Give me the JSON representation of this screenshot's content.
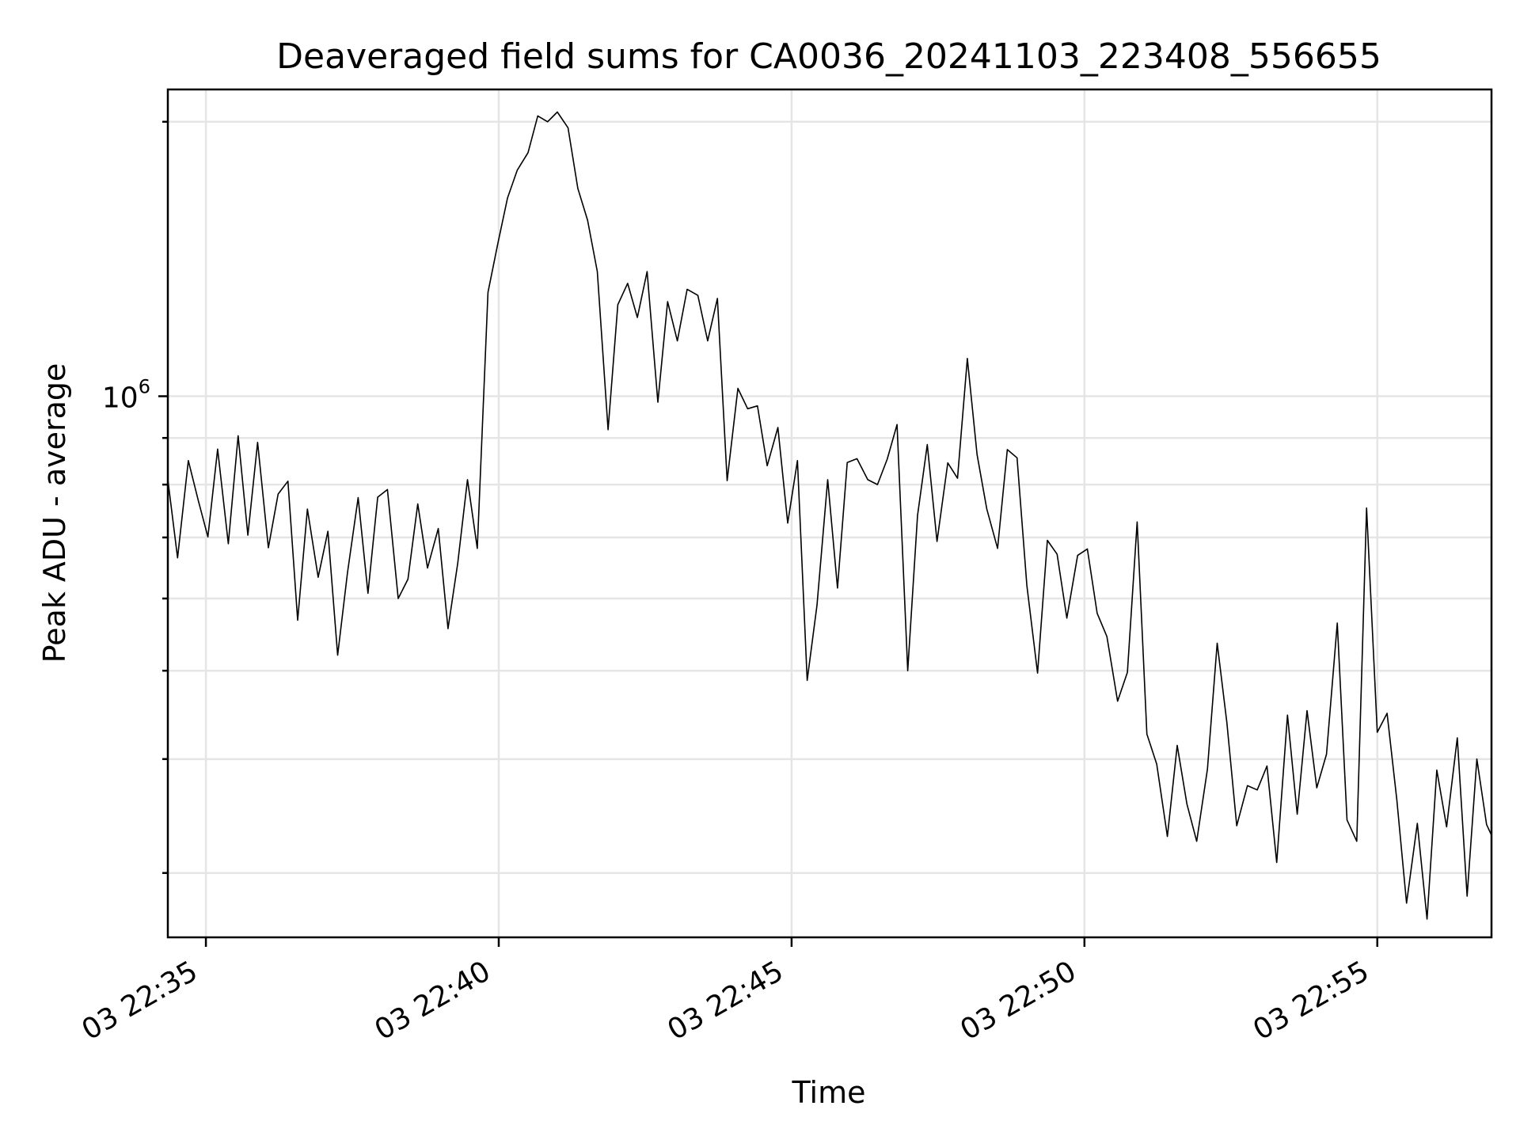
{
  "chart_data": {
    "type": "line",
    "title": "Deaveraged field sums for CA0036_20241103_223408_556655",
    "xlabel": "Time",
    "ylabel": "Peak ADU - average",
    "y_scale": "log",
    "grid": true,
    "legend": "none",
    "line_color": "#000000",
    "grid_color": "#e5e5e5",
    "x_tick_labels": [
      "03 22:35",
      "03 22:40",
      "03 22:45",
      "03 22:50",
      "03 22:55"
    ],
    "x_ticks": [
      "2024-11-03 22:35",
      "2024-11-03 22:40",
      "2024-11-03 22:45",
      "2024-11-03 22:50",
      "2024-11-03 22:55"
    ],
    "xlim": [
      "2024-11-03 22:34:21",
      "2024-11-03 22:56:57"
    ],
    "y_major_ticks": [
      {
        "value": 1000000,
        "base": "10",
        "exp": "6"
      }
    ],
    "y_minor_ticks": [
      300000,
      400000,
      500000,
      600000,
      700000,
      800000,
      900000,
      2000000
    ],
    "ylim": [
      255000,
      2170000
    ],
    "x": [
      "2024-11-03 22:34:21",
      "2024-11-03 22:34:31",
      "2024-11-03 22:34:42",
      "2024-11-03 22:34:52",
      "2024-11-03 22:35:02",
      "2024-11-03 22:35:12",
      "2024-11-03 22:35:23",
      "2024-11-03 22:35:33",
      "2024-11-03 22:35:43",
      "2024-11-03 22:35:53",
      "2024-11-03 22:36:04",
      "2024-11-03 22:36:14",
      "2024-11-03 22:36:24",
      "2024-11-03 22:36:34",
      "2024-11-03 22:36:44",
      "2024-11-03 22:36:55",
      "2024-11-03 22:37:05",
      "2024-11-03 22:37:15",
      "2024-11-03 22:37:25",
      "2024-11-03 22:37:36",
      "2024-11-03 22:37:46",
      "2024-11-03 22:37:56",
      "2024-11-03 22:38:06",
      "2024-11-03 22:38:17",
      "2024-11-03 22:38:27",
      "2024-11-03 22:38:37",
      "2024-11-03 22:38:47",
      "2024-11-03 22:38:58",
      "2024-11-03 22:39:08",
      "2024-11-03 22:39:18",
      "2024-11-03 22:39:28",
      "2024-11-03 22:39:38",
      "2024-11-03 22:39:49",
      "2024-11-03 22:39:59",
      "2024-11-03 22:40:09",
      "2024-11-03 22:40:19",
      "2024-11-03 22:40:30",
      "2024-11-03 22:40:40",
      "2024-11-03 22:40:50",
      "2024-11-03 22:41:00",
      "2024-11-03 22:41:11",
      "2024-11-03 22:41:21",
      "2024-11-03 22:41:31",
      "2024-11-03 22:41:41",
      "2024-11-03 22:41:52",
      "2024-11-03 22:42:02",
      "2024-11-03 22:42:12",
      "2024-11-03 22:42:22",
      "2024-11-03 22:42:32",
      "2024-11-03 22:42:43",
      "2024-11-03 22:42:53",
      "2024-11-03 22:43:03",
      "2024-11-03 22:43:13",
      "2024-11-03 22:43:24",
      "2024-11-03 22:43:34",
      "2024-11-03 22:43:44",
      "2024-11-03 22:43:54",
      "2024-11-03 22:44:05",
      "2024-11-03 22:44:15",
      "2024-11-03 22:44:25",
      "2024-11-03 22:44:35",
      "2024-11-03 22:44:46",
      "2024-11-03 22:44:56",
      "2024-11-03 22:45:06",
      "2024-11-03 22:45:16",
      "2024-11-03 22:45:26",
      "2024-11-03 22:45:37",
      "2024-11-03 22:45:47",
      "2024-11-03 22:45:57",
      "2024-11-03 22:46:07",
      "2024-11-03 22:46:18",
      "2024-11-03 22:46:28",
      "2024-11-03 22:46:38",
      "2024-11-03 22:46:48",
      "2024-11-03 22:46:59",
      "2024-11-03 22:47:09",
      "2024-11-03 22:47:19",
      "2024-11-03 22:47:29",
      "2024-11-03 22:47:40",
      "2024-11-03 22:47:50",
      "2024-11-03 22:48:00",
      "2024-11-03 22:48:10",
      "2024-11-03 22:48:20",
      "2024-11-03 22:48:31",
      "2024-11-03 22:48:41",
      "2024-11-03 22:48:51",
      "2024-11-03 22:49:01",
      "2024-11-03 22:49:12",
      "2024-11-03 22:49:22",
      "2024-11-03 22:49:32",
      "2024-11-03 22:49:42",
      "2024-11-03 22:49:53",
      "2024-11-03 22:50:03",
      "2024-11-03 22:50:13",
      "2024-11-03 22:50:23",
      "2024-11-03 22:50:34",
      "2024-11-03 22:50:44",
      "2024-11-03 22:50:54",
      "2024-11-03 22:51:04",
      "2024-11-03 22:51:14",
      "2024-11-03 22:51:25",
      "2024-11-03 22:51:35",
      "2024-11-03 22:51:45",
      "2024-11-03 22:51:55",
      "2024-11-03 22:52:06",
      "2024-11-03 22:52:16",
      "2024-11-03 22:52:26",
      "2024-11-03 22:52:36",
      "2024-11-03 22:52:47",
      "2024-11-03 22:52:57",
      "2024-11-03 22:53:07",
      "2024-11-03 22:53:17",
      "2024-11-03 22:53:28",
      "2024-11-03 22:53:38",
      "2024-11-03 22:53:48",
      "2024-11-03 22:53:58",
      "2024-11-03 22:54:08",
      "2024-11-03 22:54:19",
      "2024-11-03 22:54:29",
      "2024-11-03 22:54:39",
      "2024-11-03 22:54:49",
      "2024-11-03 22:55:00",
      "2024-11-03 22:55:10",
      "2024-11-03 22:55:20",
      "2024-11-03 22:55:30",
      "2024-11-03 22:55:41",
      "2024-11-03 22:55:51",
      "2024-11-03 22:56:01",
      "2024-11-03 22:56:11",
      "2024-11-03 22:56:22",
      "2024-11-03 22:56:32",
      "2024-11-03 22:56:42",
      "2024-11-03 22:56:52",
      "2024-11-03 22:56:57"
    ],
    "y": [
      810000,
      665000,
      850000,
      770000,
      701000,
      875000,
      689000,
      905000,
      704000,
      890000,
      682000,
      781000,
      807000,
      568000,
      752000,
      633000,
      711000,
      520000,
      640000,
      774000,
      608000,
      775000,
      790000,
      600000,
      630000,
      762000,
      648000,
      716000,
      556000,
      656000,
      810000,
      681000,
      1300000,
      1470000,
      1650000,
      1770000,
      1850000,
      2030000,
      2000000,
      2050000,
      1970000,
      1690000,
      1560000,
      1370000,
      919000,
      1260000,
      1330000,
      1220000,
      1370000,
      985000,
      1270000,
      1150000,
      1310000,
      1290000,
      1150000,
      1280000,
      808000,
      1020000,
      969000,
      976000,
      839000,
      924000,
      726000,
      850000,
      488000,
      590000,
      810000,
      616000,
      846000,
      854000,
      810000,
      800000,
      853000,
      931000,
      500000,
      740000,
      885000,
      693000,
      845000,
      813000,
      1100000,
      863000,
      752000,
      681000,
      874000,
      856000,
      620000,
      497000,
      695000,
      671000,
      571000,
      669000,
      680000,
      578000,
      545000,
      463000,
      498000,
      728000,
      426000,
      395000,
      329000,
      414000,
      357000,
      325000,
      390000,
      536000,
      438000,
      338000,
      374000,
      370000,
      393000,
      308000,
      447000,
      348000,
      452000,
      372000,
      405000,
      564000,
      343000,
      325000,
      754000,
      428000,
      449000,
      361000,
      278000,
      340000,
      267000,
      389000,
      337000,
      422000,
      283000,
      400000,
      339000,
      330000
    ]
  }
}
